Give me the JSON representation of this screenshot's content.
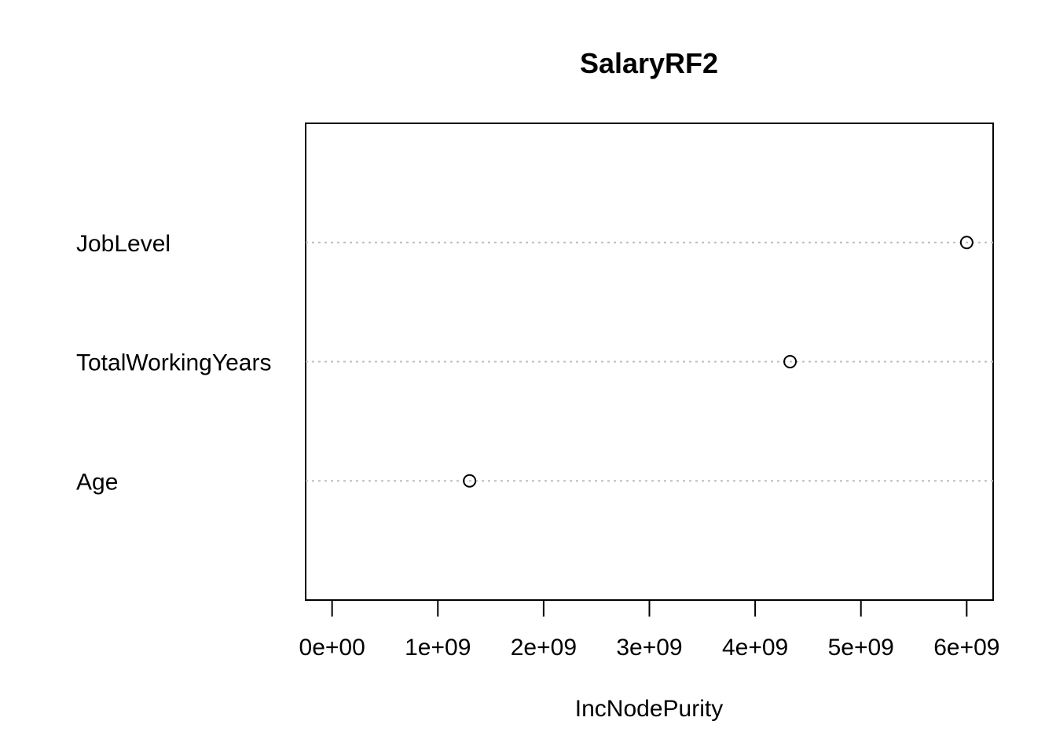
{
  "chart_data": {
    "type": "scatter",
    "title": "SalaryRF2",
    "xlabel": "IncNodePurity",
    "categories": [
      "JobLevel",
      "TotalWorkingYears",
      "Age"
    ],
    "values": [
      6000000000,
      4330000000,
      1300000000
    ],
    "xlim": [
      -250000000,
      6250000000
    ],
    "xticks": [
      0,
      1000000000,
      2000000000,
      3000000000,
      4000000000,
      5000000000,
      6000000000
    ],
    "xtick_labels": [
      "0e+00",
      "1e+09",
      "2e+09",
      "3e+09",
      "4e+09",
      "5e+09",
      "6e+09"
    ],
    "grid": "dotted horizontal"
  }
}
